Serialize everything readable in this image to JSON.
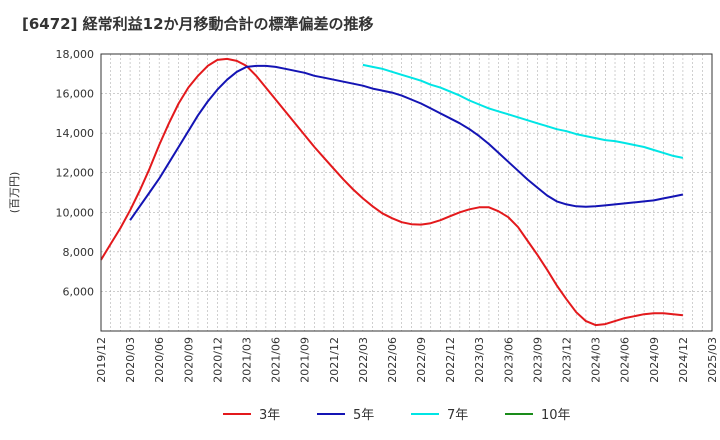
{
  "chart_data": {
    "type": "line",
    "title": "[6472]  経常利益12か月移動合計の標準偏差の推移",
    "ylabel": "(百万円)",
    "xlabel": "",
    "ylim": [
      4000,
      18000
    ],
    "yticks": [
      6000,
      8000,
      10000,
      12000,
      14000,
      16000,
      18000
    ],
    "ytick_labels": [
      "6,000",
      "8,000",
      "10,000",
      "12,000",
      "14,000",
      "16,000",
      "18,000"
    ],
    "xlim": [
      "2019-12",
      "2025-03"
    ],
    "xtick_labels": [
      "2019/12",
      "2020/03",
      "2020/06",
      "2020/09",
      "2020/12",
      "2021/03",
      "2021/06",
      "2021/09",
      "2021/12",
      "2022/03",
      "2022/06",
      "2022/09",
      "2022/12",
      "2023/03",
      "2023/06",
      "2023/09",
      "2023/12",
      "2024/03",
      "2024/06",
      "2024/09",
      "2024/12",
      "2025/03"
    ],
    "grid": true,
    "legend_position": "bottom",
    "series": [
      {
        "name": "3年",
        "color": "#e3191c",
        "x": [
          "2019-12",
          "2020-01",
          "2020-02",
          "2020-03",
          "2020-04",
          "2020-05",
          "2020-06",
          "2020-07",
          "2020-08",
          "2020-09",
          "2020-10",
          "2020-11",
          "2020-12",
          "2021-01",
          "2021-02",
          "2021-03",
          "2021-04",
          "2021-05",
          "2021-06",
          "2021-07",
          "2021-08",
          "2021-09",
          "2021-10",
          "2021-11",
          "2021-12",
          "2022-01",
          "2022-02",
          "2022-03",
          "2022-04",
          "2022-05",
          "2022-06",
          "2022-07",
          "2022-08",
          "2022-09",
          "2022-10",
          "2022-11",
          "2022-12",
          "2023-01",
          "2023-02",
          "2023-03",
          "2023-04",
          "2023-05",
          "2023-06",
          "2023-07",
          "2023-08",
          "2023-09",
          "2023-10",
          "2023-11",
          "2023-12",
          "2024-01",
          "2024-02",
          "2024-03",
          "2024-04",
          "2024-05",
          "2024-06",
          "2024-07",
          "2024-08",
          "2024-09",
          "2024-10",
          "2024-11",
          "2024-12"
        ],
        "y": [
          7600,
          8400,
          9200,
          10100,
          11100,
          12200,
          13400,
          14500,
          15500,
          16300,
          16900,
          17400,
          17700,
          17750,
          17650,
          17400,
          16900,
          16300,
          15700,
          15100,
          14500,
          13900,
          13300,
          12750,
          12200,
          11650,
          11150,
          10700,
          10300,
          9950,
          9700,
          9500,
          9400,
          9380,
          9450,
          9600,
          9800,
          10000,
          10150,
          10250,
          10250,
          10050,
          9750,
          9250,
          8550,
          7850,
          7100,
          6300,
          5600,
          4950,
          4500,
          4300,
          4350,
          4500,
          4650,
          4750,
          4850,
          4900,
          4900,
          4850,
          4800
        ]
      },
      {
        "name": "5年",
        "color": "#1414b4",
        "x": [
          "2020-03",
          "2020-04",
          "2020-05",
          "2020-06",
          "2020-07",
          "2020-08",
          "2020-09",
          "2020-10",
          "2020-11",
          "2020-12",
          "2021-01",
          "2021-02",
          "2021-03",
          "2021-04",
          "2021-05",
          "2021-06",
          "2021-07",
          "2021-08",
          "2021-09",
          "2021-10",
          "2021-11",
          "2021-12",
          "2022-01",
          "2022-02",
          "2022-03",
          "2022-04",
          "2022-05",
          "2022-06",
          "2022-07",
          "2022-08",
          "2022-09",
          "2022-10",
          "2022-11",
          "2022-12",
          "2023-01",
          "2023-02",
          "2023-03",
          "2023-04",
          "2023-05",
          "2023-06",
          "2023-07",
          "2023-08",
          "2023-09",
          "2023-10",
          "2023-11",
          "2023-12",
          "2024-01",
          "2024-02",
          "2024-03",
          "2024-04",
          "2024-05",
          "2024-06",
          "2024-07",
          "2024-08",
          "2024-09",
          "2024-10",
          "2024-11",
          "2024-12"
        ],
        "y": [
          9600,
          10300,
          11000,
          11700,
          12500,
          13300,
          14100,
          14900,
          15600,
          16200,
          16700,
          17100,
          17350,
          17400,
          17400,
          17350,
          17250,
          17150,
          17050,
          16900,
          16800,
          16700,
          16600,
          16500,
          16400,
          16250,
          16150,
          16050,
          15900,
          15700,
          15500,
          15250,
          15000,
          14750,
          14500,
          14200,
          13850,
          13450,
          13000,
          12550,
          12100,
          11650,
          11250,
          10850,
          10550,
          10400,
          10300,
          10280,
          10300,
          10350,
          10400,
          10450,
          10500,
          10550,
          10600,
          10700,
          10800,
          10900
        ]
      },
      {
        "name": "7年",
        "color": "#00e5e5",
        "x": [
          "2022-03",
          "2022-04",
          "2022-05",
          "2022-06",
          "2022-07",
          "2022-08",
          "2022-09",
          "2022-10",
          "2022-11",
          "2022-12",
          "2023-01",
          "2023-02",
          "2023-03",
          "2023-04",
          "2023-05",
          "2023-06",
          "2023-07",
          "2023-08",
          "2023-09",
          "2023-10",
          "2023-11",
          "2023-12",
          "2024-01",
          "2024-02",
          "2024-03",
          "2024-04",
          "2024-05",
          "2024-06",
          "2024-07",
          "2024-08",
          "2024-09",
          "2024-10",
          "2024-11",
          "2024-12"
        ],
        "y": [
          17450,
          17350,
          17250,
          17100,
          16950,
          16800,
          16650,
          16450,
          16300,
          16100,
          15900,
          15650,
          15450,
          15250,
          15100,
          14950,
          14800,
          14650,
          14500,
          14350,
          14200,
          14100,
          13950,
          13850,
          13750,
          13650,
          13600,
          13500,
          13400,
          13300,
          13150,
          13000,
          12850,
          12750
        ]
      },
      {
        "name": "10年",
        "color": "#1a8c1a",
        "x": [],
        "y": []
      }
    ]
  }
}
